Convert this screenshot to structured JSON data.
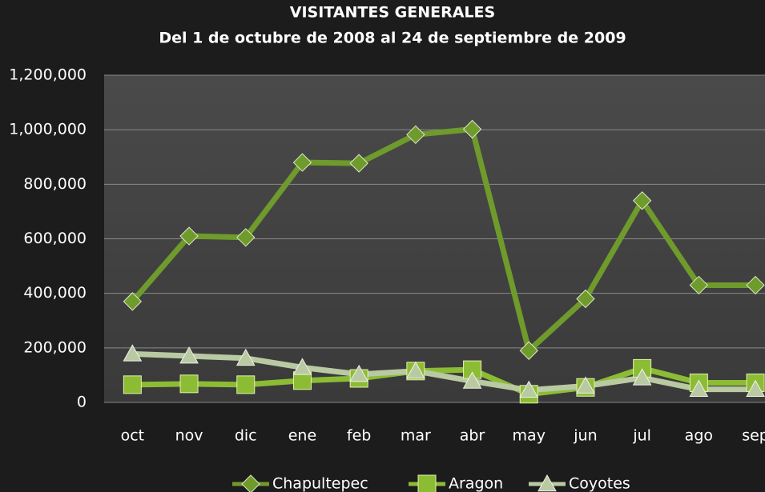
{
  "chart_data": {
    "type": "line",
    "title": "VISITANTES GENERALES",
    "subtitle": "Del 1 de octubre de 2008 al 24 de septiembre de 2009",
    "categories": [
      "oct",
      "nov",
      "dic",
      "ene",
      "feb",
      "mar",
      "abr",
      "may",
      "jun",
      "jul",
      "ago",
      "sep"
    ],
    "series": [
      {
        "name": "Chapultepec",
        "color": "#6f9a2c",
        "marker": "diamond",
        "values": [
          370000,
          610000,
          605000,
          880000,
          877000,
          982000,
          1002000,
          190000,
          380000,
          740000,
          430000,
          430000
        ]
      },
      {
        "name": "Aragon",
        "color": "#8cbc34",
        "marker": "square",
        "values": [
          65000,
          68000,
          65000,
          80000,
          88000,
          115000,
          120000,
          30000,
          55000,
          125000,
          72000,
          72000
        ]
      },
      {
        "name": "Coyotes",
        "color": "#b9c9a2",
        "marker": "triangle",
        "values": [
          178000,
          170000,
          162000,
          128000,
          103000,
          115000,
          78000,
          45000,
          60000,
          90000,
          48000,
          48000
        ]
      }
    ],
    "ylim": [
      0,
      1200000
    ],
    "yticks": [
      0,
      {
        "value": 200000,
        "label": "200,000"
      },
      {
        "value": 400000,
        "label": "400,000"
      },
      {
        "value": 600000,
        "label": "600,000"
      },
      {
        "value": 800000,
        "label": "800,000"
      },
      {
        "value": 1000000,
        "label": "1,000,000"
      },
      {
        "value": 1200000,
        "label": "1,200,000"
      }
    ],
    "grid": true,
    "legend": "bottom"
  }
}
